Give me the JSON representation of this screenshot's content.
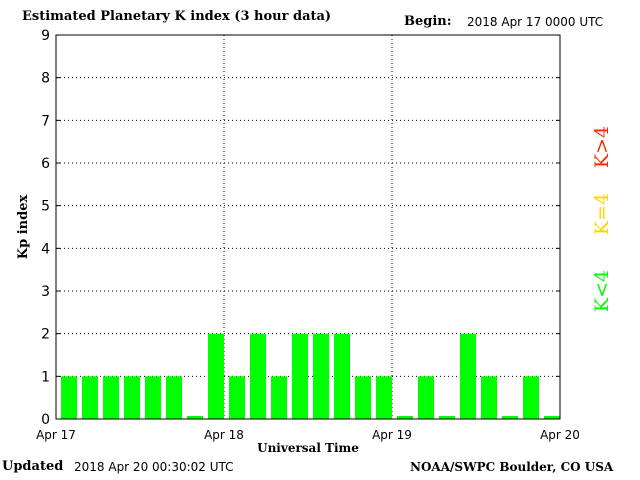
{
  "header": {
    "title": "Estimated Planetary K index (3 hour data)",
    "begin_label": "Begin:",
    "begin_value": "2018 Apr 17 0000 UTC"
  },
  "footer": {
    "updated_label": "Updated",
    "updated_value": "2018 Apr 20 00:30:02 UTC",
    "credit": "NOAA/SWPC Boulder, CO USA"
  },
  "legend": [
    {
      "label": "K>4",
      "color": "#ff2a00"
    },
    {
      "label": "K=4",
      "color": "#ffd700"
    },
    {
      "label": "K<4",
      "color": "#00ff00"
    }
  ],
  "chart_data": {
    "type": "bar",
    "title": "Estimated Planetary K index (3 hour data)",
    "xlabel": "Universal Time",
    "ylabel": "Kp index",
    "ylim": [
      0,
      9
    ],
    "yticks": [
      0,
      1,
      2,
      3,
      4,
      5,
      6,
      7,
      8,
      9
    ],
    "xticks": [
      "Apr 17",
      "Apr 18",
      "Apr 19",
      "Apr 20"
    ],
    "grid": true,
    "bar_color": "#00ff00",
    "series": [
      {
        "values": [
          1,
          1,
          1,
          1,
          1,
          1,
          0,
          2,
          1,
          2,
          1,
          2,
          2,
          2,
          1,
          1,
          0,
          1,
          0,
          2,
          1,
          0,
          1,
          0
        ]
      }
    ]
  }
}
